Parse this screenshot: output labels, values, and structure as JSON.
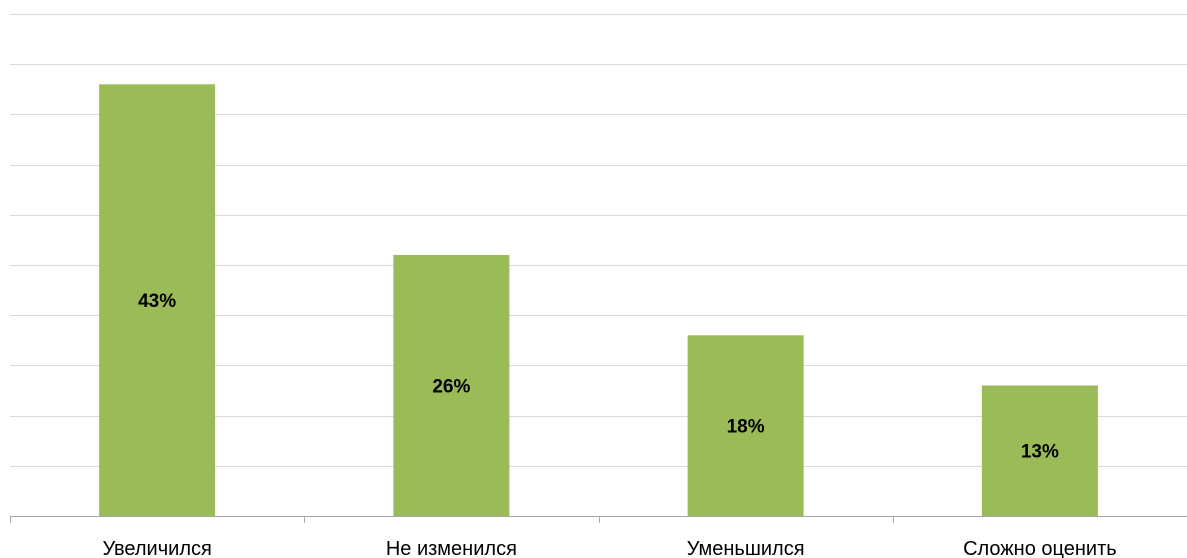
{
  "chart_data": {
    "type": "bar",
    "categories": [
      "Увеличился",
      "Не изменился",
      "Уменьшился",
      "Сложно оценить"
    ],
    "values": [
      43,
      26,
      18,
      13
    ],
    "value_labels": [
      "43%",
      "26%",
      "18%",
      "13%"
    ],
    "ylim": [
      0,
      50
    ],
    "grid": true,
    "bar_color": "#9BBB59",
    "grid_color": "#D9D9D9",
    "axis_color": "#A6A6A6"
  }
}
